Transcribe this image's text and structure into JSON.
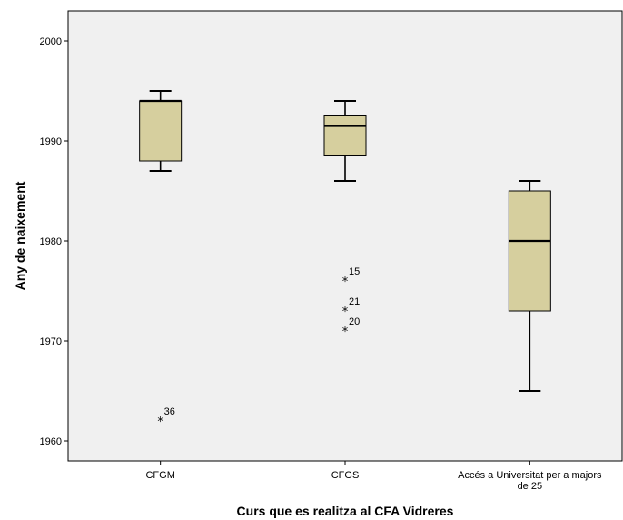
{
  "chart_data": {
    "type": "boxplot",
    "xlabel": "Curs que es realitza al CFA Vidreres",
    "ylabel": "Any de naixement",
    "ylim": [
      1958,
      2003
    ],
    "yticks": [
      1960,
      1970,
      1980,
      1990,
      2000
    ],
    "background_color": "#f0f0f0",
    "box_color": "#d6cf9e",
    "grid": false,
    "categories": [
      {
        "label": "CFGM",
        "lines": [
          "CFGM"
        ]
      },
      {
        "label": "CFGS",
        "lines": [
          "CFGS"
        ]
      },
      {
        "label": "Accés a Universitat per a majors de 25",
        "lines": [
          "Accés a Universitat per a majors",
          "de 25"
        ]
      }
    ],
    "boxes": [
      {
        "whisker_low": 1987,
        "q1": 1988,
        "median": 1994,
        "q3": 1994,
        "whisker_high": 1995,
        "outliers": [
          {
            "value": 1962,
            "label": "36"
          }
        ]
      },
      {
        "whisker_low": 1986,
        "q1": 1988.5,
        "median": 1991.5,
        "q3": 1992.5,
        "whisker_high": 1994,
        "outliers": [
          {
            "value": 1976,
            "label": "15"
          },
          {
            "value": 1973,
            "label": "21"
          },
          {
            "value": 1971,
            "label": "20"
          }
        ]
      },
      {
        "whisker_low": 1965,
        "q1": 1973,
        "median": 1980,
        "q3": 1985,
        "whisker_high": 1986,
        "outliers": []
      }
    ]
  }
}
